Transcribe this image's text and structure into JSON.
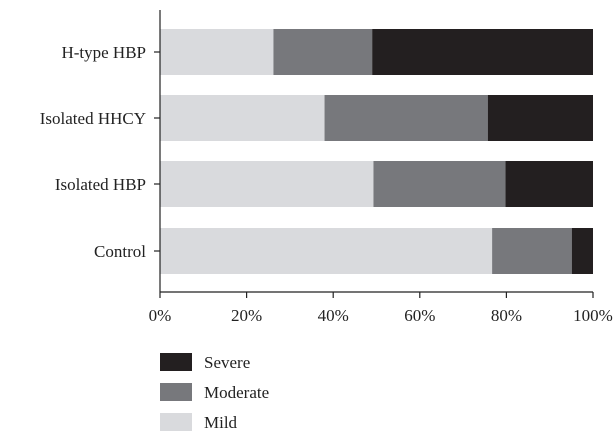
{
  "chart_data": {
    "type": "bar",
    "orientation": "horizontal",
    "stacked": true,
    "normalized_percent": true,
    "categories": [
      "H-type HBP",
      "Isolated HHCY",
      "Isolated HBP",
      "Control"
    ],
    "series": [
      {
        "name": "Mild",
        "values": [
          26.2,
          38.0,
          49.3,
          76.7
        ],
        "color": "#d9dadd"
      },
      {
        "name": "Moderate",
        "values": [
          22.8,
          37.7,
          30.5,
          18.4
        ],
        "color": "#77787c"
      },
      {
        "name": "Severe",
        "values": [
          51.0,
          24.3,
          20.2,
          4.9
        ],
        "color": "#231f20"
      }
    ],
    "x_ticks": [
      "0%",
      "20%",
      "40%",
      "60%",
      "80%",
      "100%"
    ],
    "xlim": [
      0,
      100
    ],
    "title": "",
    "xlabel": "",
    "ylabel": "",
    "grid": false,
    "legend": {
      "position": "bottom-left",
      "order": [
        "Severe",
        "Moderate",
        "Mild"
      ]
    }
  }
}
